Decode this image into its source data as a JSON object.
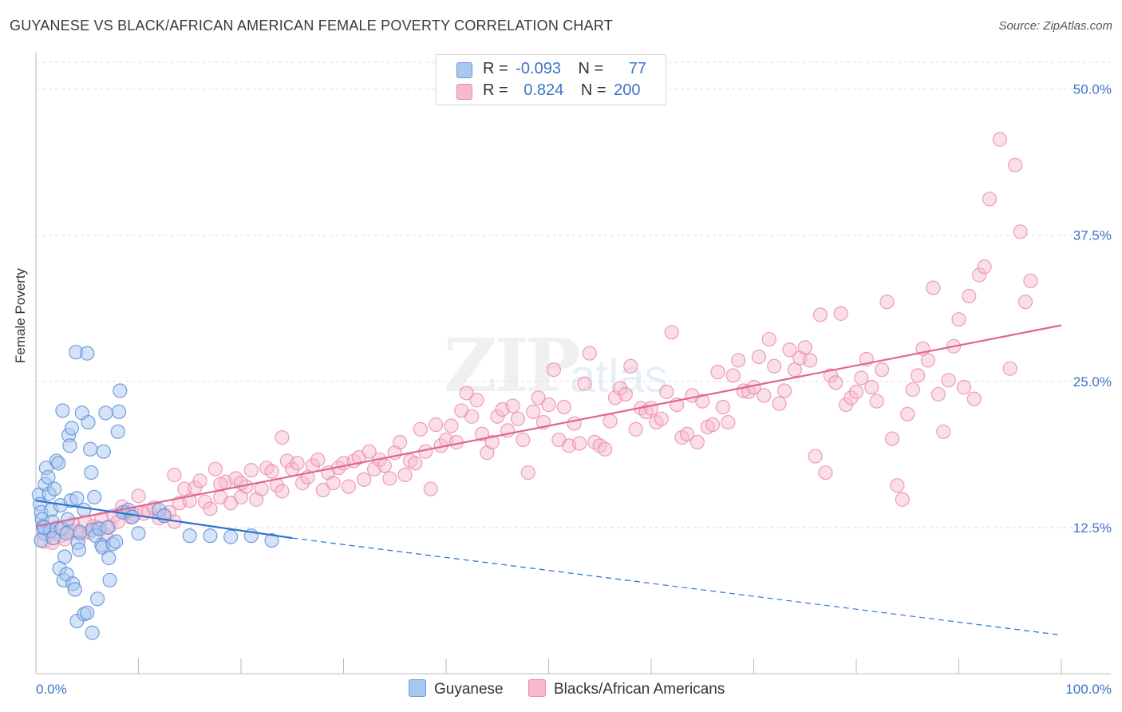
{
  "header": {
    "title": "GUYANESE VS BLACK/AFRICAN AMERICAN FEMALE POVERTY CORRELATION CHART",
    "source": "Source: ZipAtlas.com"
  },
  "watermark": {
    "main": "ZIP",
    "sub": "atlas"
  },
  "legend": {
    "rows": [
      {
        "r_label": "R =",
        "r_value": "-0.093",
        "n_label": "N =",
        "n_value": "77",
        "color": "#a9c8f0"
      },
      {
        "r_label": "R =",
        "r_value": "0.824",
        "n_label": "N =",
        "n_value": "200",
        "color": "#f6b9cd"
      }
    ]
  },
  "bottom_legend": {
    "series1": "Guyanese",
    "series2": "Blacks/African Americans"
  },
  "chart_data": {
    "type": "scatter",
    "title": "GUYANESE VS BLACK/AFRICAN AMERICAN FEMALE POVERTY CORRELATION CHART",
    "xlabel": "",
    "ylabel": "Female Poverty",
    "xlim": [
      0,
      100
    ],
    "ylim": [
      0,
      52.5
    ],
    "x_tick_labels": [
      "0.0%",
      "100.0%"
    ],
    "y_ticks": [
      12.5,
      25.0,
      37.5,
      50.0
    ],
    "y_tick_labels": [
      "12.5%",
      "25.0%",
      "37.5%",
      "50.0%"
    ],
    "grid": true,
    "colors": {
      "guyanese_fill": "#a9c8f0",
      "guyanese_stroke": "#5d8fd6",
      "guyanese_line": "#2f6fd0",
      "black_fill": "#f6b9cd",
      "black_stroke": "#e887a8",
      "black_line": "#e06595",
      "tick_text": "#3f73c4",
      "grid": "#dddddd"
    },
    "series": [
      {
        "name": "Guyanese",
        "r": -0.093,
        "n": 77,
        "trend": {
          "x0": 0,
          "y0": 14.8,
          "x1": 25,
          "y1": 11.6,
          "dash_x_end": 100,
          "dash_y_end": 3.3
        },
        "points": [
          [
            0.3,
            15.3
          ],
          [
            0.4,
            14.5
          ],
          [
            0.5,
            13.8
          ],
          [
            0.6,
            13.2
          ],
          [
            0.7,
            12.6
          ],
          [
            0.8,
            12.0
          ],
          [
            0.5,
            11.4
          ],
          [
            0.9,
            16.2
          ],
          [
            1.0,
            17.6
          ],
          [
            1.2,
            16.8
          ],
          [
            1.3,
            15.4
          ],
          [
            1.5,
            14.0
          ],
          [
            1.6,
            13.0
          ],
          [
            1.4,
            12.2
          ],
          [
            1.7,
            11.6
          ],
          [
            1.8,
            15.8
          ],
          [
            2.0,
            18.2
          ],
          [
            2.2,
            18.0
          ],
          [
            2.4,
            14.4
          ],
          [
            2.5,
            12.4
          ],
          [
            2.6,
            22.5
          ],
          [
            2.8,
            10.0
          ],
          [
            2.3,
            9.0
          ],
          [
            2.7,
            8.0
          ],
          [
            3.0,
            8.5
          ],
          [
            3.1,
            13.2
          ],
          [
            3.2,
            20.4
          ],
          [
            3.3,
            19.5
          ],
          [
            3.4,
            14.8
          ],
          [
            3.5,
            21.0
          ],
          [
            3.6,
            7.7
          ],
          [
            3.8,
            7.2
          ],
          [
            3.0,
            12.0
          ],
          [
            3.9,
            27.5
          ],
          [
            4.0,
            15.0
          ],
          [
            4.1,
            11.2
          ],
          [
            4.2,
            10.6
          ],
          [
            4.3,
            12.1
          ],
          [
            4.5,
            22.3
          ],
          [
            4.7,
            14.0
          ],
          [
            5.0,
            27.4
          ],
          [
            5.1,
            21.5
          ],
          [
            5.3,
            19.2
          ],
          [
            5.4,
            17.2
          ],
          [
            5.5,
            12.3
          ],
          [
            5.7,
            15.1
          ],
          [
            5.8,
            11.8
          ],
          [
            6.0,
            6.4
          ],
          [
            6.2,
            12.4
          ],
          [
            6.4,
            11.0
          ],
          [
            6.5,
            10.8
          ],
          [
            6.6,
            19.0
          ],
          [
            6.8,
            22.3
          ],
          [
            7.0,
            12.5
          ],
          [
            7.1,
            9.9
          ],
          [
            7.2,
            8.0
          ],
          [
            7.5,
            11.1
          ],
          [
            7.8,
            11.3
          ],
          [
            8.0,
            20.7
          ],
          [
            8.1,
            22.4
          ],
          [
            8.2,
            24.2
          ],
          [
            8.5,
            13.8
          ],
          [
            9.0,
            14.0
          ],
          [
            9.4,
            13.4
          ],
          [
            10.0,
            12.0
          ],
          [
            4.0,
            4.5
          ],
          [
            4.7,
            5.1
          ],
          [
            5.0,
            5.2
          ],
          [
            5.5,
            3.5
          ],
          [
            12.0,
            14.0
          ],
          [
            12.5,
            13.5
          ],
          [
            15.0,
            11.8
          ],
          [
            17.0,
            11.8
          ],
          [
            19.0,
            11.7
          ],
          [
            21.0,
            11.8
          ],
          [
            23.0,
            11.4
          ],
          [
            0.8,
            12.5
          ]
        ]
      },
      {
        "name": "Blacks/African Americans",
        "r": 0.824,
        "n": 200,
        "trend": {
          "x0": 0,
          "y0": 12.6,
          "x1": 100,
          "y1": 29.8
        },
        "points": [
          [
            0.8,
            11.3
          ],
          [
            1.2,
            11.9
          ],
          [
            1.6,
            11.2
          ],
          [
            2.0,
            12.5
          ],
          [
            2.4,
            11.8
          ],
          [
            2.8,
            11.5
          ],
          [
            3.2,
            12.2
          ],
          [
            3.6,
            12.8
          ],
          [
            4.0,
            12.2
          ],
          [
            4.4,
            11.9
          ],
          [
            4.8,
            13.0
          ],
          [
            5.2,
            12.1
          ],
          [
            5.6,
            12.6
          ],
          [
            6.0,
            12.5
          ],
          [
            6.4,
            13.2
          ],
          [
            6.8,
            11.8
          ],
          [
            7.2,
            12.6
          ],
          [
            7.6,
            13.5
          ],
          [
            8.0,
            13.0
          ],
          [
            8.4,
            14.3
          ],
          [
            8.8,
            13.8
          ],
          [
            9.2,
            13.4
          ],
          [
            9.6,
            13.6
          ],
          [
            10.0,
            15.2
          ],
          [
            10.5,
            13.7
          ],
          [
            11.0,
            13.9
          ],
          [
            11.5,
            14.2
          ],
          [
            12.0,
            13.3
          ],
          [
            12.5,
            13.6
          ],
          [
            13.0,
            13.8
          ],
          [
            13.5,
            13.0
          ],
          [
            14.0,
            14.6
          ],
          [
            14.5,
            15.8
          ],
          [
            15.0,
            14.8
          ],
          [
            15.5,
            15.9
          ],
          [
            16.0,
            16.5
          ],
          [
            16.5,
            14.7
          ],
          [
            17.0,
            14.1
          ],
          [
            17.5,
            17.5
          ],
          [
            18.0,
            15.1
          ],
          [
            18.5,
            16.4
          ],
          [
            19.0,
            14.6
          ],
          [
            19.5,
            16.7
          ],
          [
            20.0,
            15.1
          ],
          [
            20.5,
            16.0
          ],
          [
            21.0,
            17.4
          ],
          [
            21.5,
            14.9
          ],
          [
            22.0,
            15.8
          ],
          [
            22.5,
            17.6
          ],
          [
            23.0,
            17.3
          ],
          [
            23.5,
            16.1
          ],
          [
            24.0,
            15.6
          ],
          [
            24.5,
            18.2
          ],
          [
            25.0,
            17.5
          ],
          [
            25.5,
            18.0
          ],
          [
            26.0,
            16.3
          ],
          [
            26.5,
            16.8
          ],
          [
            27.0,
            17.8
          ],
          [
            27.5,
            18.3
          ],
          [
            28.0,
            15.7
          ],
          [
            28.5,
            17.2
          ],
          [
            29.0,
            16.3
          ],
          [
            29.5,
            17.6
          ],
          [
            30.0,
            18.0
          ],
          [
            30.5,
            16.0
          ],
          [
            31.0,
            18.2
          ],
          [
            31.5,
            18.5
          ],
          [
            32.0,
            16.6
          ],
          [
            32.5,
            19.0
          ],
          [
            33.0,
            17.5
          ],
          [
            33.5,
            18.3
          ],
          [
            34.0,
            17.8
          ],
          [
            34.5,
            16.7
          ],
          [
            35.0,
            18.9
          ],
          [
            35.5,
            19.8
          ],
          [
            36.0,
            17.0
          ],
          [
            36.5,
            18.2
          ],
          [
            37.0,
            18.0
          ],
          [
            37.5,
            20.9
          ],
          [
            38.0,
            19.0
          ],
          [
            38.5,
            15.8
          ],
          [
            39.0,
            21.3
          ],
          [
            39.5,
            19.5
          ],
          [
            40.0,
            20.0
          ],
          [
            40.5,
            21.2
          ],
          [
            41.0,
            19.8
          ],
          [
            41.5,
            22.5
          ],
          [
            42.0,
            24.0
          ],
          [
            42.5,
            22.0
          ],
          [
            43.0,
            23.4
          ],
          [
            43.5,
            20.5
          ],
          [
            44.0,
            18.9
          ],
          [
            44.5,
            19.8
          ],
          [
            45.0,
            22.0
          ],
          [
            45.5,
            22.6
          ],
          [
            46.0,
            20.8
          ],
          [
            46.5,
            22.9
          ],
          [
            47.0,
            21.8
          ],
          [
            47.5,
            20.0
          ],
          [
            48.0,
            17.2
          ],
          [
            48.5,
            22.4
          ],
          [
            49.0,
            23.6
          ],
          [
            49.5,
            21.5
          ],
          [
            50.0,
            23.0
          ],
          [
            50.5,
            26.0
          ],
          [
            51.0,
            20.0
          ],
          [
            51.5,
            22.8
          ],
          [
            52.0,
            19.5
          ],
          [
            52.5,
            21.4
          ],
          [
            53.0,
            19.7
          ],
          [
            53.5,
            24.8
          ],
          [
            54.0,
            27.4
          ],
          [
            54.5,
            19.8
          ],
          [
            55.0,
            19.5
          ],
          [
            55.5,
            19.2
          ],
          [
            56.0,
            21.6
          ],
          [
            56.5,
            23.6
          ],
          [
            57.0,
            24.4
          ],
          [
            57.5,
            23.9
          ],
          [
            58.0,
            26.3
          ],
          [
            58.5,
            20.9
          ],
          [
            59.0,
            22.7
          ],
          [
            59.5,
            22.4
          ],
          [
            60.0,
            22.7
          ],
          [
            60.5,
            21.5
          ],
          [
            61.0,
            21.8
          ],
          [
            61.5,
            24.1
          ],
          [
            62.0,
            29.2
          ],
          [
            62.5,
            23.0
          ],
          [
            63.0,
            20.2
          ],
          [
            63.5,
            20.5
          ],
          [
            64.0,
            23.8
          ],
          [
            64.5,
            19.8
          ],
          [
            65.0,
            23.3
          ],
          [
            65.5,
            21.1
          ],
          [
            66.0,
            21.3
          ],
          [
            66.5,
            25.8
          ],
          [
            67.0,
            22.8
          ],
          [
            67.5,
            21.5
          ],
          [
            68.0,
            25.5
          ],
          [
            68.5,
            26.8
          ],
          [
            69.0,
            24.2
          ],
          [
            69.5,
            24.1
          ],
          [
            70.0,
            24.5
          ],
          [
            70.5,
            27.1
          ],
          [
            71.0,
            23.8
          ],
          [
            71.5,
            28.6
          ],
          [
            72.0,
            26.3
          ],
          [
            72.5,
            23.1
          ],
          [
            73.0,
            24.2
          ],
          [
            73.5,
            27.7
          ],
          [
            74.0,
            26.0
          ],
          [
            74.5,
            27.0
          ],
          [
            75.0,
            27.9
          ],
          [
            75.5,
            26.8
          ],
          [
            76.0,
            18.6
          ],
          [
            76.5,
            30.7
          ],
          [
            77.0,
            17.2
          ],
          [
            77.5,
            25.5
          ],
          [
            78.0,
            24.9
          ],
          [
            78.5,
            30.8
          ],
          [
            79.0,
            23.0
          ],
          [
            79.5,
            23.6
          ],
          [
            80.0,
            24.1
          ],
          [
            80.5,
            25.3
          ],
          [
            81.0,
            26.9
          ],
          [
            81.5,
            24.5
          ],
          [
            82.0,
            23.3
          ],
          [
            82.5,
            26.0
          ],
          [
            83.0,
            31.8
          ],
          [
            83.5,
            20.1
          ],
          [
            84.0,
            16.1
          ],
          [
            84.5,
            14.9
          ],
          [
            85.0,
            22.2
          ],
          [
            85.5,
            24.3
          ],
          [
            86.0,
            25.5
          ],
          [
            86.5,
            27.8
          ],
          [
            87.0,
            26.8
          ],
          [
            87.5,
            33.0
          ],
          [
            88.0,
            23.9
          ],
          [
            88.5,
            20.7
          ],
          [
            89.0,
            25.1
          ],
          [
            89.5,
            28.0
          ],
          [
            90.0,
            30.3
          ],
          [
            90.5,
            24.5
          ],
          [
            91.0,
            32.3
          ],
          [
            91.5,
            23.5
          ],
          [
            92.0,
            34.1
          ],
          [
            92.5,
            34.8
          ],
          [
            93.0,
            40.6
          ],
          [
            94.0,
            45.7
          ],
          [
            95.0,
            26.1
          ],
          [
            95.5,
            43.5
          ],
          [
            96.0,
            37.8
          ],
          [
            96.5,
            31.8
          ],
          [
            97.0,
            33.6
          ],
          [
            18.0,
            16.2
          ],
          [
            24.0,
            20.2
          ],
          [
            13.5,
            17.0
          ],
          [
            20.0,
            16.3
          ]
        ]
      }
    ]
  }
}
